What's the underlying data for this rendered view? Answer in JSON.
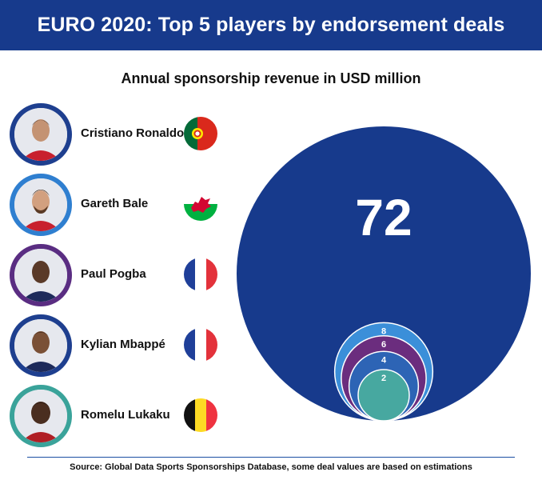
{
  "header": {
    "title": "EURO 2020: Top 5 players by endorsement deals"
  },
  "subtitle": "Annual sponsorship revenue in USD million",
  "colors": {
    "header_bg": "#173a8c",
    "main_bubble": "#173a8c",
    "accent_line": "#1a4fa3"
  },
  "players": [
    {
      "name": "Cristiano Ronaldo",
      "ring_color": "#1e3f8f",
      "flag": "portugal-flag-icon"
    },
    {
      "name": "Gareth Bale",
      "ring_color": "#2f7fd0",
      "flag": "wales-flag-icon"
    },
    {
      "name": "Paul Pogba",
      "ring_color": "#5a2d82",
      "flag": "france-flag-icon"
    },
    {
      "name": "Kylian Mbappé",
      "ring_color": "#1e3f8f",
      "flag": "france-flag-icon"
    },
    {
      "name": "Romelu Lukaku",
      "ring_color": "#3aa39a",
      "flag": "belgium-flag-icon"
    }
  ],
  "chart_data": {
    "type": "nested-bubble",
    "title": "Annual sponsorship revenue in USD million",
    "series": [
      {
        "name": "Cristiano Ronaldo",
        "value": 72,
        "label": "72",
        "color": "#173a8c"
      },
      {
        "name": "Gareth Bale",
        "value": 8,
        "label": "8",
        "color": "#3b8fd9"
      },
      {
        "name": "Paul Pogba",
        "value": 6,
        "label": "6",
        "color": "#6b2d7e"
      },
      {
        "name": "Kylian Mbappé",
        "value": 4,
        "label": "4",
        "color": "#2d64b5"
      },
      {
        "name": "Romelu Lukaku",
        "value": 2,
        "label": "2",
        "color": "#47a8a0"
      }
    ]
  },
  "source": "Source: Global Data Sports Sponsorships Database, some deal values are based on estimations"
}
